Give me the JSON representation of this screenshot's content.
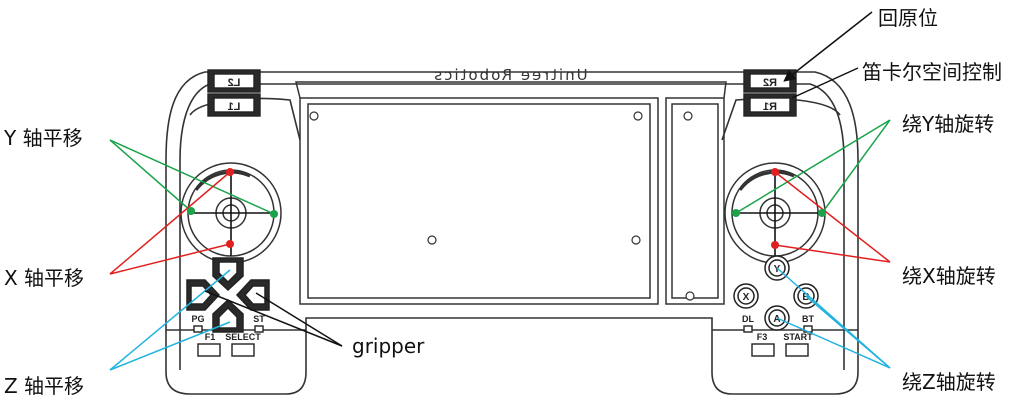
{
  "annotations": {
    "y_translate": "Y 轴平移",
    "x_translate": "X 轴平移",
    "z_translate": "Z 轴平移",
    "gripper": "gripper",
    "return_home": "回原位",
    "cartesian_control": "笛卡尔空间控制",
    "rotate_y": "绕Y轴旋转",
    "rotate_x": "绕X轴旋转",
    "rotate_z": "绕Z轴旋转"
  },
  "controller": {
    "brand_text": "Unitree Robotics",
    "shoulder": {
      "l2": "L2",
      "l1": "L1",
      "r2": "R2",
      "r1": "R1"
    },
    "left_labels": {
      "pg": "PG",
      "st": "ST",
      "f1": "F1",
      "select": "SELECT"
    },
    "right_labels": {
      "dl": "DL",
      "bt": "BT",
      "f3": "F3",
      "start": "START"
    },
    "face_buttons": {
      "y": "Y",
      "x": "X",
      "b": "B",
      "a": "A"
    }
  },
  "colors": {
    "outline": "#333333",
    "green_lines": "#1aa34a",
    "red_lines": "#e02020",
    "blue_lines": "#1fb3e0",
    "black_lines": "#111111"
  }
}
